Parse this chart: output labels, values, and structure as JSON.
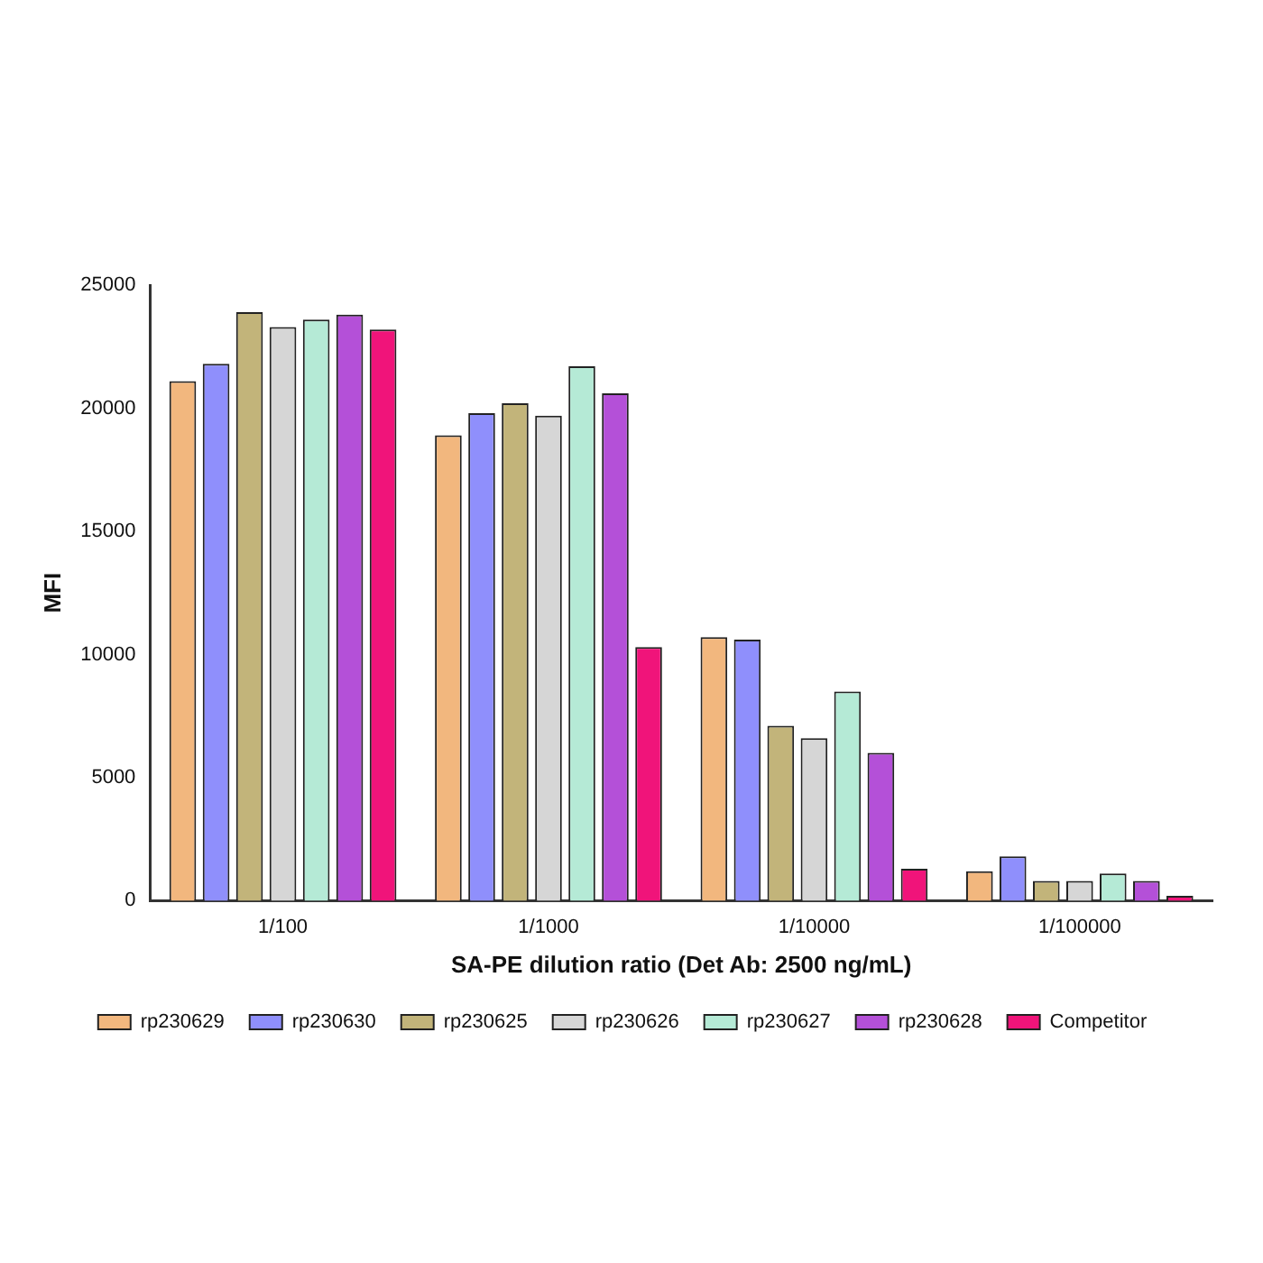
{
  "chart_data": {
    "type": "bar",
    "xlabel": "SA-PE dilution ratio (Det Ab: 2500 ng/mL)",
    "ylabel": "MFI",
    "categories": [
      "1/100",
      "1/1000",
      "1/10000",
      "1/100000"
    ],
    "series": [
      {
        "name": "rp230629",
        "color": "#f2b77e",
        "values": [
          21100,
          18900,
          10700,
          1200
        ]
      },
      {
        "name": "rp230630",
        "color": "#8f8ffc",
        "values": [
          21800,
          19800,
          10600,
          1800
        ]
      },
      {
        "name": "rp230625",
        "color": "#c2b47a",
        "values": [
          23900,
          20200,
          7100,
          800
        ]
      },
      {
        "name": "rp230626",
        "color": "#d6d6d6",
        "values": [
          23300,
          19700,
          6600,
          800
        ]
      },
      {
        "name": "rp230627",
        "color": "#b5ead6",
        "values": [
          23600,
          21700,
          8500,
          1100
        ]
      },
      {
        "name": "rp230628",
        "color": "#b450d8",
        "values": [
          23800,
          20600,
          6000,
          800
        ]
      },
      {
        "name": "Competitor",
        "color": "#f0147a",
        "values": [
          23200,
          10300,
          1300,
          200
        ]
      }
    ],
    "ylim": [
      0,
      25000
    ],
    "yticks": [
      0,
      5000,
      10000,
      15000,
      20000,
      25000
    ],
    "grid": false,
    "legend": "bottom"
  }
}
